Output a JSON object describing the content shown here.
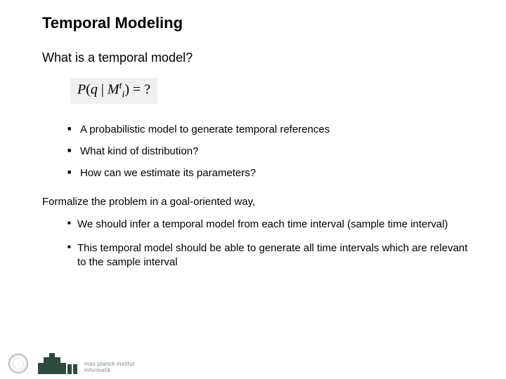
{
  "title": "Temporal Modeling",
  "subheading": "What is a  temporal model?",
  "formula": {
    "lhs_P": "P",
    "open": "(",
    "q": "q",
    "bar": " | ",
    "M": "M",
    "sub_i": "i",
    "sup_t": "t",
    "close": ")",
    "eq": " = ?"
  },
  "bullets_top": [
    "A probabilistic model to generate temporal references",
    "What kind of distribution?",
    "How can we estimate its parameters?"
  ],
  "paragraph": "Formalize the problem in a goal-oriented way,",
  "bullets_bottom": [
    "We should infer a temporal model from each time interval (sample time interval)",
    "This temporal model should be able to generate all time intervals which are relevant to the sample interval"
  ],
  "footer": {
    "institute_line1": "max planck institut",
    "institute_line2": "informatik"
  },
  "colors": {
    "text": "#000000",
    "background": "#ffffff",
    "formula_bg": "#f0f0f0",
    "logo_green": "#2d4a3a",
    "logo_text": "#7a8a7e"
  },
  "fonts": {
    "body_family": "Arial",
    "title_size_pt": 22,
    "subheading_size_pt": 18,
    "body_size_pt": 15,
    "formula_family": "Times New Roman",
    "formula_size_pt": 20
  }
}
